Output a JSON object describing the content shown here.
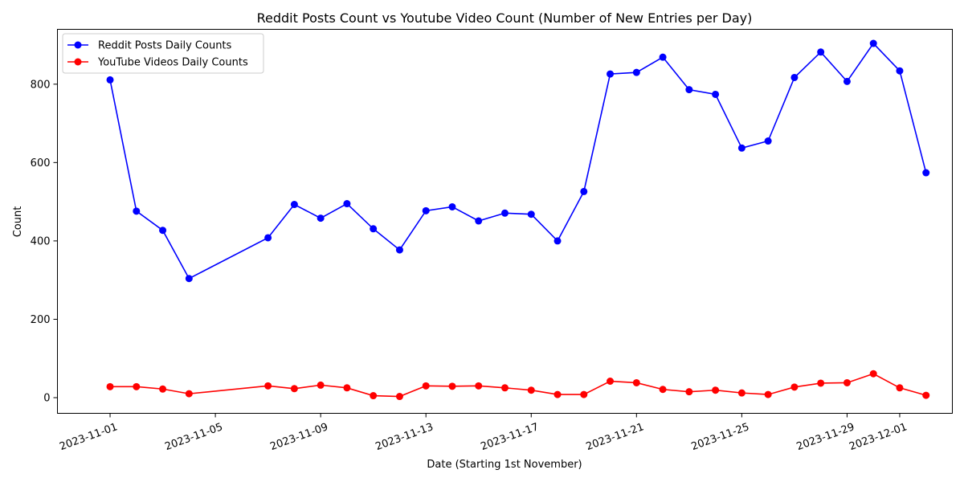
{
  "chart_data": {
    "type": "line",
    "title": "Reddit Posts Count vs Youtube Video Count (Number of New Entries per Day)",
    "xlabel": "Date (Starting 1st November)",
    "ylabel": "Count",
    "xlim": [
      "2023-10-30",
      "2023-12-03"
    ],
    "ylim": [
      -40,
      940
    ],
    "x_ticks": [
      "2023-11-01",
      "2023-11-05",
      "2023-11-09",
      "2023-11-13",
      "2023-11-17",
      "2023-11-21",
      "2023-11-25",
      "2023-11-29",
      "2023-12-01"
    ],
    "y_ticks": [
      0,
      200,
      400,
      600,
      800
    ],
    "grid": false,
    "legend_position": "top-left",
    "series": [
      {
        "name": "Reddit Posts Daily Counts",
        "color": "#0000ff",
        "marker": "circle",
        "points": [
          [
            "2023-11-01",
            811
          ],
          [
            "2023-11-02",
            476
          ],
          [
            "2023-11-03",
            427
          ],
          [
            "2023-11-04",
            304
          ],
          [
            "2023-11-07",
            408
          ],
          [
            "2023-11-08",
            493
          ],
          [
            "2023-11-09",
            458
          ],
          [
            "2023-11-10",
            495
          ],
          [
            "2023-11-11",
            431
          ],
          [
            "2023-11-12",
            377
          ],
          [
            "2023-11-13",
            477
          ],
          [
            "2023-11-14",
            487
          ],
          [
            "2023-11-15",
            451
          ],
          [
            "2023-11-16",
            471
          ],
          [
            "2023-11-17",
            468
          ],
          [
            "2023-11-18",
            400
          ],
          [
            "2023-11-19",
            526
          ],
          [
            "2023-11-20",
            826
          ],
          [
            "2023-11-21",
            830
          ],
          [
            "2023-11-22",
            869
          ],
          [
            "2023-11-23",
            786
          ],
          [
            "2023-11-24",
            774
          ],
          [
            "2023-11-25",
            637
          ],
          [
            "2023-11-26",
            655
          ],
          [
            "2023-11-27",
            817
          ],
          [
            "2023-11-28",
            882
          ],
          [
            "2023-11-29",
            807
          ],
          [
            "2023-11-30",
            904
          ],
          [
            "2023-12-01",
            834
          ],
          [
            "2023-12-02",
            574
          ]
        ]
      },
      {
        "name": "YouTube Videos Daily Counts",
        "color": "#ff0000",
        "marker": "circle",
        "points": [
          [
            "2023-11-01",
            28
          ],
          [
            "2023-11-02",
            28
          ],
          [
            "2023-11-03",
            22
          ],
          [
            "2023-11-04",
            10
          ],
          [
            "2023-11-07",
            30
          ],
          [
            "2023-11-08",
            23
          ],
          [
            "2023-11-09",
            32
          ],
          [
            "2023-11-10",
            25
          ],
          [
            "2023-11-11",
            5
          ],
          [
            "2023-11-12",
            3
          ],
          [
            "2023-11-13",
            30
          ],
          [
            "2023-11-14",
            29
          ],
          [
            "2023-11-15",
            30
          ],
          [
            "2023-11-16",
            25
          ],
          [
            "2023-11-17",
            19
          ],
          [
            "2023-11-18",
            8
          ],
          [
            "2023-11-19",
            8
          ],
          [
            "2023-11-20",
            42
          ],
          [
            "2023-11-21",
            38
          ],
          [
            "2023-11-22",
            21
          ],
          [
            "2023-11-23",
            15
          ],
          [
            "2023-11-24",
            19
          ],
          [
            "2023-11-25",
            12
          ],
          [
            "2023-11-26",
            8
          ],
          [
            "2023-11-27",
            27
          ],
          [
            "2023-11-28",
            37
          ],
          [
            "2023-11-29",
            38
          ],
          [
            "2023-11-30",
            61
          ],
          [
            "2023-12-01",
            25
          ],
          [
            "2023-12-02",
            6
          ]
        ]
      }
    ]
  }
}
